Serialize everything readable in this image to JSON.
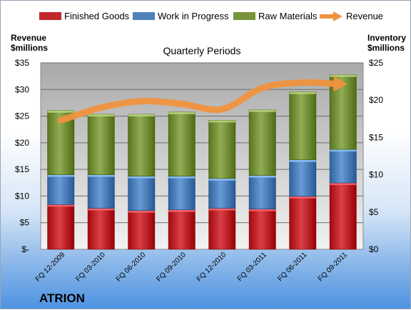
{
  "chart_data": {
    "type": "bar",
    "title": "Quarterly Periods",
    "brand": "ATRION",
    "left_axis": {
      "title_line1": "Revenue",
      "title_line2": "$millions",
      "ylim": [
        0,
        35
      ],
      "ticks": [
        0,
        5,
        10,
        15,
        20,
        25,
        30,
        35
      ],
      "tick_labels": [
        "$-",
        "$5",
        "$10",
        "$15",
        "$20",
        "$25",
        "$30",
        "$35"
      ]
    },
    "right_axis": {
      "title_line1": "Inventory",
      "title_line2": "$millions",
      "ylim": [
        0,
        25
      ],
      "ticks": [
        0,
        5,
        10,
        15,
        20,
        25
      ],
      "tick_labels": [
        "$0",
        "$5",
        "$10",
        "$15",
        "$20",
        "$25"
      ]
    },
    "categories": [
      "FQ 12-2009",
      "FQ 03-2010",
      "FQ 06-2010",
      "FQ 09-2010",
      "FQ 12-2010",
      "FQ 03-2011",
      "FQ 06-2011",
      "FQ 09-2011"
    ],
    "series": [
      {
        "name": "Finished Goods",
        "axis": "right",
        "color": "#c0272d",
        "values": [
          6.0,
          5.5,
          5.2,
          5.3,
          5.5,
          5.4,
          7.1,
          8.9
        ]
      },
      {
        "name": "Work in Progress",
        "axis": "right",
        "color": "#4f81bd",
        "values": [
          4.0,
          4.5,
          4.6,
          4.5,
          4.0,
          4.5,
          4.9,
          4.5
        ]
      },
      {
        "name": "Raw Materials",
        "axis": "right",
        "color": "#77933c",
        "values": [
          8.6,
          8.1,
          8.3,
          8.6,
          7.8,
          8.8,
          9.1,
          10.0
        ]
      },
      {
        "name": "Revenue",
        "axis": "left",
        "color": "#f0923e",
        "type": "line",
        "values": [
          24.2,
          26.6,
          27.8,
          27.3,
          26.3,
          30.3,
          31.3,
          31.0
        ]
      }
    ],
    "legend_position": "top",
    "grid": true
  }
}
